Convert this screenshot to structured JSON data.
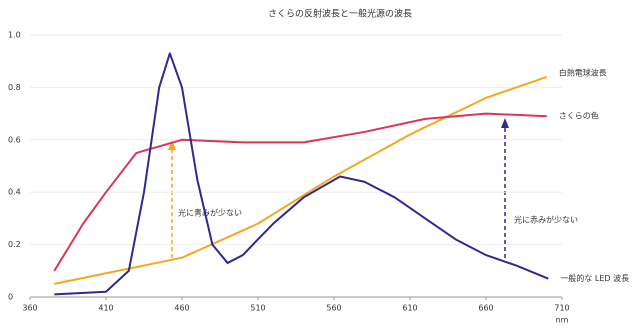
{
  "chart_data": {
    "type": "line",
    "title": "さくらの反射波長と一般光源の波長",
    "x_label": "nm",
    "xlim": [
      360,
      710
    ],
    "xticks": [
      360,
      410,
      460,
      510,
      560,
      610,
      660,
      710
    ],
    "ylim": [
      0,
      1
    ],
    "yticks": [
      0,
      0.2,
      0.4,
      0.6,
      0.8,
      {
        "value": 1,
        "label": "1.0"
      }
    ],
    "series": [
      {
        "name": "白熱電球波長",
        "color": "#f5a623",
        "x": [
          376,
          460,
          510,
          560,
          610,
          660,
          700
        ],
        "values": [
          0.05,
          0.15,
          0.28,
          0.46,
          0.62,
          0.76,
          0.84
        ]
      },
      {
        "name": "さくらの色",
        "color": "#d9365b",
        "x": [
          376,
          395,
          410,
          430,
          460,
          500,
          540,
          580,
          620,
          660,
          700
        ],
        "values": [
          0.1,
          0.28,
          0.4,
          0.55,
          0.6,
          0.59,
          0.59,
          0.63,
          0.68,
          0.7,
          0.69
        ]
      },
      {
        "name": "一般的な LED 波長",
        "color": "#2e2a8e",
        "x": [
          376,
          410,
          425,
          435,
          445,
          452,
          460,
          470,
          480,
          490,
          500,
          520,
          540,
          564,
          580,
          600,
          620,
          640,
          660,
          680,
          701
        ],
        "values": [
          0.01,
          0.02,
          0.1,
          0.4,
          0.8,
          0.93,
          0.8,
          0.45,
          0.2,
          0.13,
          0.16,
          0.28,
          0.38,
          0.46,
          0.44,
          0.38,
          0.3,
          0.22,
          0.16,
          0.12,
          0.07
        ]
      }
    ],
    "annotations": [
      "光に青みが少ない",
      "光に赤みが少ない"
    ]
  }
}
